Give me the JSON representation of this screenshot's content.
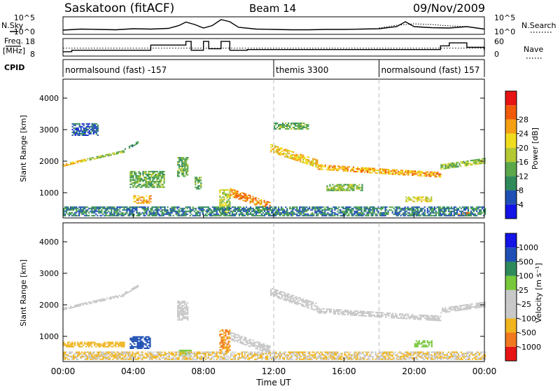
{
  "header": {
    "station": "Saskatoon (fitACF)",
    "beam": "Beam 14",
    "date": "09/Nov/2009"
  },
  "labels": {
    "nsky": "N.Sky",
    "nsearch": "N.Search",
    "freq_line1": "Freq.",
    "freq_line2": "[MHz]",
    "nave": "Nave",
    "cpid": "CPID"
  },
  "cpid_segments": [
    {
      "start": 0,
      "end": 12,
      "label": "normalsound (fast) -157"
    },
    {
      "start": 12,
      "end": 18,
      "label": "themis 3300"
    },
    {
      "start": 18,
      "end": 24,
      "label": "normalsound (fast) 157"
    }
  ],
  "colors": {
    "power": [
      "#1414e6",
      "#1f4fb4",
      "#2e8a5a",
      "#5aa84a",
      "#b4c832",
      "#f0dc1e",
      "#f5a014",
      "#f05a0a",
      "#e61414"
    ],
    "velocity": [
      "#e61414",
      "#f0781e",
      "#f0b41e",
      "#c8c8c8",
      "#c8c8c8",
      "#78c83c",
      "#2e8a5a",
      "#1f4fb4",
      "#1414e6"
    ]
  },
  "chart_data": [
    {
      "type": "line",
      "panel": "noise",
      "xlim": [
        0,
        24
      ],
      "ylabel_left": "N.Sky",
      "ylabel_right": "N.Search",
      "yticks_left": [
        "10^5",
        "10^0"
      ],
      "yticks_right": [
        "10^5",
        "10^0"
      ],
      "series": [
        {
          "name": "N.Sky",
          "x": [
            0,
            1,
            2,
            3,
            4,
            5,
            6,
            6.6,
            7,
            7.5,
            8,
            8.5,
            9,
            9.5,
            10,
            11,
            12,
            13,
            14,
            15,
            16,
            17,
            18,
            19,
            19.5,
            20,
            21,
            22,
            23,
            24
          ],
          "y": [
            1.2,
            1.5,
            1.4,
            1.3,
            1.6,
            1.5,
            1.7,
            2.5,
            3.5,
            2.8,
            1.8,
            2.5,
            4.2,
            3.6,
            2.0,
            1.5,
            1.4,
            1.3,
            1.3,
            1.4,
            1.4,
            1.5,
            1.6,
            2.2,
            3.6,
            2.2,
            1.9,
            1.8,
            2.2,
            1.5
          ]
        },
        {
          "name": "N.Search",
          "x": [
            18,
            19,
            20,
            21,
            22,
            23
          ],
          "y": [
            1.8,
            2.6,
            3.0,
            2.8,
            2.4,
            2.2
          ]
        }
      ]
    },
    {
      "type": "line",
      "panel": "frequency",
      "xlim": [
        0,
        24
      ],
      "ylabel_left": "Freq. [MHz]",
      "ylabel_right": "Nave",
      "yticks_left": [
        "18",
        "8"
      ],
      "yticks_right": [
        "60",
        "0"
      ],
      "series": [
        {
          "name": "Freq.",
          "x": [
            0,
            0.5,
            5,
            7,
            7.3,
            8,
            8.3,
            9,
            9.5,
            10.5,
            21.5,
            22,
            23,
            24
          ],
          "y": [
            10,
            11,
            14.5,
            17,
            11,
            17,
            12,
            17,
            11,
            11.5,
            14,
            16,
            13,
            11
          ]
        },
        {
          "name": "Nave",
          "x": [
            0,
            24
          ],
          "y": [
            27,
            27
          ]
        }
      ]
    },
    {
      "type": "heatmap",
      "panel": "power",
      "xlim": [
        0,
        24
      ],
      "ylim": [
        200,
        4600
      ],
      "x_ticks": [
        "00:00",
        "04:00",
        "08:00",
        "12:00",
        "16:00",
        "20:00",
        "00:00"
      ],
      "y_ticks": [
        "1000",
        "2000",
        "3000",
        "4000"
      ],
      "ylabel": "Slant Range [km]",
      "colorbar_label": "Power [dB]",
      "colorbar_ticks": [
        "4",
        "8",
        "12",
        "16",
        "20",
        "24",
        "28"
      ],
      "scatter_bands": [
        {
          "t0": 0,
          "t1": 1.5,
          "r0": 1850,
          "r1": 2050,
          "dr": 50,
          "val": 20
        },
        {
          "t0": 1.5,
          "t1": 3.5,
          "r0": 2050,
          "r1": 2300,
          "dr": 60,
          "val": 14
        },
        {
          "t0": 3.5,
          "t1": 4.3,
          "r0": 2350,
          "r1": 2600,
          "dr": 60,
          "val": 10
        },
        {
          "t0": 3.8,
          "t1": 5.8,
          "r0": 1150,
          "r1": 1650,
          "dr": 0,
          "val": 12
        },
        {
          "t0": 4.0,
          "t1": 5.0,
          "r0": 650,
          "r1": 900,
          "dr": 0,
          "val": 22
        },
        {
          "t0": 6.5,
          "t1": 7.1,
          "r0": 1500,
          "r1": 2100,
          "dr": 0,
          "val": 12
        },
        {
          "t0": 7.5,
          "t1": 7.9,
          "r0": 1100,
          "r1": 1500,
          "dr": 0,
          "val": 12
        },
        {
          "t0": 8.9,
          "t1": 9.5,
          "r0": 300,
          "r1": 1100,
          "dr": 0,
          "val": 16
        },
        {
          "t0": 9.5,
          "t1": 11.8,
          "r0": 1000,
          "r1": 550,
          "dr": 250,
          "val": 24
        },
        {
          "t0": 11.8,
          "t1": 14.5,
          "r0": 2400,
          "r1": 1900,
          "dr": 250,
          "val": 20
        },
        {
          "t0": 14.5,
          "t1": 18.5,
          "r0": 1800,
          "r1": 1650,
          "dr": 150,
          "val": 22
        },
        {
          "t0": 18.5,
          "t1": 21.5,
          "r0": 1650,
          "r1": 1550,
          "dr": 150,
          "val": 22
        },
        {
          "t0": 21.5,
          "t1": 24,
          "r0": 1800,
          "r1": 2000,
          "dr": 150,
          "val": 14
        },
        {
          "t0": 15,
          "t1": 17,
          "r0": 1050,
          "r1": 1250,
          "dr": 0,
          "val": 14
        },
        {
          "t0": 19.5,
          "t1": 21,
          "r0": 700,
          "r1": 850,
          "dr": 0,
          "val": 18
        },
        {
          "t0": 22.5,
          "t1": 23.2,
          "r0": 250,
          "r1": 350,
          "dr": 0,
          "val": 26
        },
        {
          "t0": 0,
          "t1": 24,
          "r0": 250,
          "r1": 550,
          "dr": 0,
          "val": 8
        },
        {
          "t0": 12,
          "t1": 14,
          "r0": 3000,
          "r1": 3200,
          "dr": 0,
          "val": 12
        },
        {
          "t0": 0.5,
          "t1": 2,
          "r0": 2800,
          "r1": 3200,
          "dr": 0,
          "val": 6
        }
      ]
    },
    {
      "type": "heatmap",
      "panel": "velocity",
      "xlim": [
        0,
        24
      ],
      "ylim": [
        200,
        4600
      ],
      "x_ticks": [
        "00:00",
        "04:00",
        "08:00",
        "12:00",
        "16:00",
        "20:00",
        "00:00"
      ],
      "y_ticks": [
        "1000",
        "2000",
        "3000",
        "4000"
      ],
      "ylabel": "Slant Range [km]",
      "xlabel": "Time UT",
      "colorbar_label": "Velocity [m s⁻¹]",
      "colorbar_ticks": [
        "1000",
        "500",
        "100",
        "25",
        "-25",
        "-100",
        "-500",
        "-1000"
      ],
      "scatter_bands": [
        {
          "t0": 0,
          "t1": 1.5,
          "r0": 1850,
          "r1": 2050,
          "dr": 50,
          "val": 0
        },
        {
          "t0": 1.5,
          "t1": 3.5,
          "r0": 2050,
          "r1": 2300,
          "dr": 60,
          "val": 0
        },
        {
          "t0": 3.5,
          "t1": 4.3,
          "r0": 2350,
          "r1": 2600,
          "dr": 60,
          "val": 0
        },
        {
          "t0": 3.8,
          "t1": 5.0,
          "r0": 600,
          "r1": 1000,
          "dr": 0,
          "val": 600
        },
        {
          "t0": 0,
          "t1": 3.5,
          "r0": 650,
          "r1": 800,
          "dr": 0,
          "val": -150
        },
        {
          "t0": 6.5,
          "t1": 7.1,
          "r0": 1500,
          "r1": 2100,
          "dr": 0,
          "val": 0
        },
        {
          "t0": 6.6,
          "t1": 7.3,
          "r0": 350,
          "r1": 550,
          "dr": 0,
          "val": 150
        },
        {
          "t0": 8.9,
          "t1": 9.5,
          "r0": 500,
          "r1": 1200,
          "dr": 0,
          "val": -300
        },
        {
          "t0": 9.5,
          "t1": 11.8,
          "r0": 1000,
          "r1": 550,
          "dr": 250,
          "val": 0
        },
        {
          "t0": 11.8,
          "t1": 14.5,
          "r0": 2400,
          "r1": 1900,
          "dr": 250,
          "val": 0
        },
        {
          "t0": 14.5,
          "t1": 18.5,
          "r0": 1800,
          "r1": 1650,
          "dr": 150,
          "val": 0
        },
        {
          "t0": 18.5,
          "t1": 21.5,
          "r0": 1650,
          "r1": 1550,
          "dr": 150,
          "val": 0
        },
        {
          "t0": 21.5,
          "t1": 24,
          "r0": 1800,
          "r1": 2000,
          "dr": 150,
          "val": 0
        },
        {
          "t0": 20,
          "t1": 21,
          "r0": 650,
          "r1": 850,
          "dr": 0,
          "val": 150
        },
        {
          "t0": 0,
          "t1": 24,
          "r0": 250,
          "r1": 500,
          "dr": 0,
          "val": -60
        }
      ]
    }
  ]
}
